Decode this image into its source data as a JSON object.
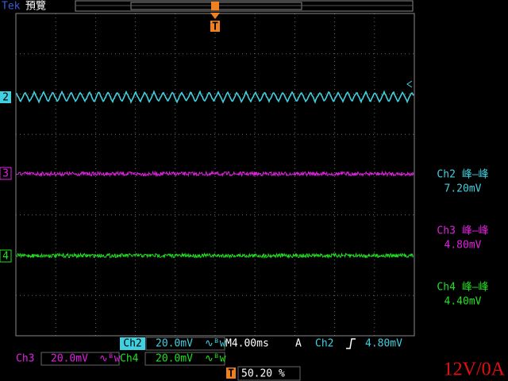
{
  "header": {
    "brand": "Tek",
    "mode": "預覽",
    "trigger_marker": "T"
  },
  "channel_markers": [
    "2",
    "3",
    "4"
  ],
  "measurements": [
    {
      "label": "Ch2 峰–峰",
      "value": "7.20mV"
    },
    {
      "label": "Ch3 峰–峰",
      "value": "4.80mV"
    },
    {
      "label": "Ch4 峰–峰",
      "value": "4.40mV"
    }
  ],
  "status": {
    "ch2": {
      "name": "Ch2",
      "scale": "20.0mV"
    },
    "timebase": "M4.00ms",
    "acq": "A",
    "trigger_source": "Ch2",
    "trigger_level": "4.80mV",
    "ch3": {
      "name": "Ch3",
      "scale": "20.0mV"
    },
    "ch4": {
      "name": "Ch4",
      "scale": "20.0mV"
    },
    "trigger_position": "50.20 %"
  },
  "caption": "12V/0A"
}
